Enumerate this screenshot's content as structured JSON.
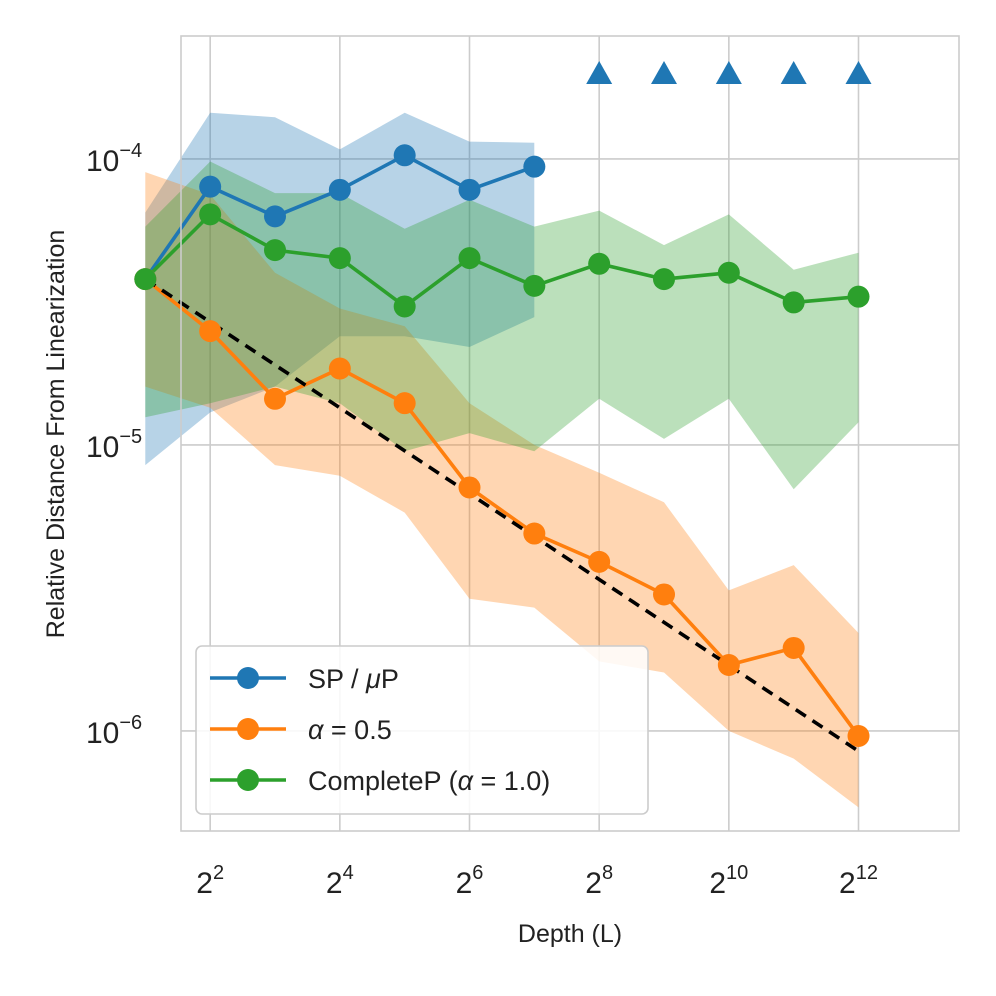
{
  "chart_data": {
    "type": "line",
    "xlabel": "Depth (L)",
    "ylabel": "Relative Distance From Linearization",
    "x_scale": "log2",
    "y_scale": "log10",
    "xlim": [
      1.55,
      13.55
    ],
    "ylim_exp": [
      -6.35,
      -3.57
    ],
    "x_ticks": [
      {
        "exp": 2,
        "base": "2",
        "sup": "2"
      },
      {
        "exp": 4,
        "base": "2",
        "sup": "4"
      },
      {
        "exp": 6,
        "base": "2",
        "sup": "6"
      },
      {
        "exp": 8,
        "base": "2",
        "sup": "8"
      },
      {
        "exp": 10,
        "base": "2",
        "sup": "10"
      },
      {
        "exp": 12,
        "base": "2",
        "sup": "12"
      }
    ],
    "y_ticks": [
      {
        "exp": -4,
        "base": "10",
        "sup": "−4"
      },
      {
        "exp": -5,
        "base": "10",
        "sup": "−5"
      },
      {
        "exp": -6,
        "base": "10",
        "sup": "−6"
      }
    ],
    "series": [
      {
        "name": "SP / μP",
        "legend_prefix": "SP / ",
        "legend_italic": "μ",
        "legend_suffix": "P",
        "color": "#1f77b4",
        "band_color": "#1f77b4",
        "x_log2": [
          1,
          2,
          3,
          4,
          5,
          6,
          7
        ],
        "y": [
          3.8e-05,
          8e-05,
          6.3e-05,
          7.8e-05,
          0.000103,
          7.8e-05,
          9.4e-05
        ],
        "lower": [
          8.5e-06,
          1.3e-05,
          1.6e-05,
          2.4e-05,
          2.4e-05,
          2.2e-05,
          2.8e-05
        ],
        "upper": [
          6.5e-05,
          0.000145,
          0.00014,
          0.000108,
          0.000145,
          0.000115,
          0.000114
        ],
        "diverged_x_log2": [
          8,
          9,
          10,
          11,
          12
        ],
        "diverged_marker": "triangle"
      },
      {
        "name": "α = 0.5",
        "legend_prefix": "",
        "legend_italic": "α",
        "legend_suffix": " = 0.5",
        "color": "#ff7f0e",
        "band_color": "#ff7f0e",
        "x_log2": [
          1,
          2,
          3,
          4,
          5,
          6,
          7,
          8,
          9,
          10,
          11,
          12
        ],
        "y": [
          3.8e-05,
          2.5e-05,
          1.45e-05,
          1.85e-05,
          1.4e-05,
          7.1e-06,
          4.9e-06,
          3.9e-06,
          3e-06,
          1.7e-06,
          1.95e-06,
          9.6e-07
        ],
        "lower": [
          1.6e-05,
          1.35e-05,
          8.5e-06,
          7.8e-06,
          5.8e-06,
          2.9e-06,
          2.7e-06,
          1.75e-06,
          1.6e-06,
          1e-06,
          8e-07,
          5.4e-07
        ],
        "upper": [
          9e-05,
          7.5e-05,
          4e-05,
          3e-05,
          2.6e-05,
          1.4e-05,
          1e-05,
          8e-06,
          6.3e-06,
          3.1e-06,
          3.8e-06,
          2.2e-06
        ]
      },
      {
        "name": "CompleteP (α = 1.0)",
        "legend_prefix": "CompleteP (",
        "legend_italic": "α",
        "legend_suffix": " = 1.0)",
        "color": "#2ca02c",
        "band_color": "#2ca02c",
        "x_log2": [
          1,
          2,
          3,
          4,
          5,
          6,
          7,
          8,
          9,
          10,
          11,
          12
        ],
        "y": [
          3.8e-05,
          6.4e-05,
          4.8e-05,
          4.5e-05,
          3.05e-05,
          4.5e-05,
          3.6e-05,
          4.3e-05,
          3.8e-05,
          4e-05,
          3.15e-05,
          3.3e-05
        ],
        "lower": [
          1.25e-05,
          1.4e-05,
          1.6e-05,
          1.4e-05,
          9.5e-06,
          1.1e-05,
          9.5e-06,
          1.45e-05,
          1.05e-05,
          1.45e-05,
          7e-06,
          1.2e-05
        ],
        "upper": [
          5.8e-05,
          9.8e-05,
          7.6e-05,
          7.6e-05,
          5.7e-05,
          7.2e-05,
          5.8e-05,
          6.6e-05,
          5e-05,
          6.4e-05,
          4.1e-05,
          4.7e-05
        ]
      }
    ],
    "reference_line": {
      "style": "dashed",
      "color": "#000000",
      "x_log2": [
        1,
        12
      ],
      "y": [
        3.8e-05,
        8.5e-07
      ]
    },
    "legend": {
      "placement": "lower-left"
    }
  }
}
